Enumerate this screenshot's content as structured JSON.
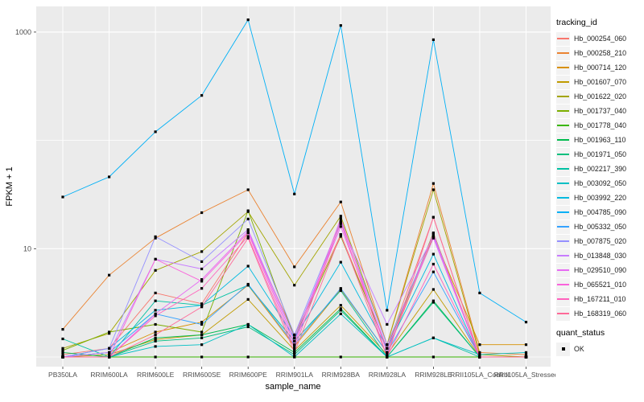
{
  "chart_data": {
    "type": "line",
    "title": "",
    "xlabel": "sample_name",
    "ylabel": "FPKM + 1",
    "y_scale": "log10",
    "ylim": [
      0.85,
      1700
    ],
    "grid": true,
    "panel_bg": "#EBEBEB",
    "grid_color": "#FFFFFF",
    "marker": "square",
    "marker_color": "#000000",
    "y_ticks": [
      {
        "label": "10",
        "value": 10
      },
      {
        "label": "1000",
        "value": 1000
      }
    ],
    "y_minor_gridlines": [
      1,
      100
    ],
    "categories": [
      "PB350LA",
      "RRIM600LA",
      "RRIM600LE",
      "RRIM600SE",
      "RRIM600PE",
      "RRIM901LA",
      "RRIM928BA",
      "RRIM928LA",
      "RRIM928LE",
      "RRII105LA_Control",
      "RRII105LA_Stressed"
    ],
    "series": [
      {
        "name": "Hb_000254_060",
        "color": "#F8766D",
        "values": [
          1.05,
          1.2,
          3.9,
          3.1,
          14,
          1.6,
          13.5,
          1.2,
          19.5,
          1.0,
          1.0
        ]
      },
      {
        "name": "Hb_000258_210",
        "color": "#EA8331",
        "values": [
          1.8,
          5.7,
          12.5,
          21.5,
          35,
          6.8,
          27,
          1.3,
          40,
          1.1,
          1.05
        ]
      },
      {
        "name": "Hb_000714_120",
        "color": "#D89000",
        "values": [
          1.0,
          1.1,
          1.7,
          2.1,
          4.6,
          1.25,
          4.2,
          1.1,
          13,
          1.3,
          1.3
        ]
      },
      {
        "name": "Hb_001607_070",
        "color": "#C09B00",
        "values": [
          1.0,
          1.05,
          1.45,
          1.6,
          3.4,
          1.15,
          3.0,
          1.05,
          4.2,
          1.0,
          1.0
        ]
      },
      {
        "name": "Hb_001622_020",
        "color": "#A3A500",
        "values": [
          1.2,
          1.65,
          6.3,
          9.4,
          22,
          4.6,
          20,
          1.3,
          35,
          1.05,
          1.0
        ]
      },
      {
        "name": "Hb_001737_040",
        "color": "#7CAE00",
        "values": [
          1.15,
          1.7,
          2.0,
          1.7,
          22.4,
          1.5,
          13,
          1.2,
          14,
          1.0,
          1.0
        ]
      },
      {
        "name": "Hb_001778_040",
        "color": "#39B600",
        "values": [
          1.0,
          1.0,
          1.0,
          1.0,
          1.0,
          1.0,
          1.0,
          1.0,
          1.0,
          1.0,
          1.0
        ]
      },
      {
        "name": "Hb_001963_110",
        "color": "#00BB4E",
        "values": [
          1.1,
          1.0,
          1.5,
          1.6,
          2.0,
          1.1,
          2.8,
          1.0,
          3.3,
          1.0,
          1.0
        ]
      },
      {
        "name": "Hb_001971_050",
        "color": "#00BF7D",
        "values": [
          1.0,
          1.0,
          1.4,
          1.5,
          1.9,
          1.05,
          2.7,
          1.0,
          3.2,
          1.0,
          1.0
        ]
      },
      {
        "name": "Hb_002217_390",
        "color": "#00C1A3",
        "values": [
          1.47,
          1.0,
          3.3,
          3.0,
          4.6,
          1.4,
          4.1,
          1.0,
          1.5,
          1.0,
          1.0
        ]
      },
      {
        "name": "Hb_003092_050",
        "color": "#00BFC4",
        "values": [
          1.0,
          1.0,
          1.25,
          1.3,
          2.0,
          1.0,
          2.5,
          1.0,
          1.5,
          1.05,
          1.1
        ]
      },
      {
        "name": "Hb_003992_220",
        "color": "#00BAE0",
        "values": [
          1.0,
          1.2,
          2.7,
          3.0,
          6.9,
          1.5,
          7.5,
          1.2,
          8.9,
          1.0,
          1.0
        ]
      },
      {
        "name": "Hb_004785_090",
        "color": "#00B0F6",
        "values": [
          30,
          46,
          120,
          260,
          1300,
          32,
          1150,
          2.7,
          850,
          3.9,
          2.1
        ]
      },
      {
        "name": "Hb_005332_050",
        "color": "#35A2FF",
        "values": [
          1.0,
          1.1,
          2.5,
          2.0,
          4.7,
          1.3,
          4.3,
          1.1,
          6.1,
          1.0,
          1.0
        ]
      },
      {
        "name": "Hb_007875_020",
        "color": "#9590FF",
        "values": [
          1.0,
          1.2,
          12.9,
          7.6,
          18.8,
          1.6,
          18,
          1.3,
          13.5,
          1.0,
          1.0
        ]
      },
      {
        "name": "Hb_013848_030",
        "color": "#C77CFF",
        "values": [
          1.0,
          1.1,
          8.0,
          6.5,
          15,
          1.5,
          17,
          2.0,
          13,
          1.0,
          1.0
        ]
      },
      {
        "name": "Hb_029510_090",
        "color": "#E76BF3",
        "values": [
          1.0,
          1.0,
          2.5,
          5.2,
          14.5,
          1.4,
          16,
          1.2,
          12.5,
          1.0,
          1.0
        ]
      },
      {
        "name": "Hb_065521_010",
        "color": "#FA62DB",
        "values": [
          1.0,
          1.0,
          8.0,
          5.0,
          14,
          1.3,
          19,
          1.1,
          13.8,
          1.0,
          1.0
        ]
      },
      {
        "name": "Hb_167211_010",
        "color": "#FF62BC",
        "values": [
          1.0,
          1.0,
          2.4,
          4.3,
          13,
          1.2,
          17.5,
          1.0,
          7.2,
          1.0,
          1.0
        ]
      },
      {
        "name": "Hb_168319_060",
        "color": "#FF6A98",
        "values": [
          1.0,
          1.0,
          1.6,
          2.9,
          12.5,
          1.1,
          13.5,
          1.0,
          19.5,
          1.0,
          1.0
        ]
      }
    ]
  },
  "legend": {
    "tracking_title": "tracking_id",
    "quant_title": "quant_status",
    "quant_value": "OK",
    "key_bg": "#F2F2F2"
  }
}
